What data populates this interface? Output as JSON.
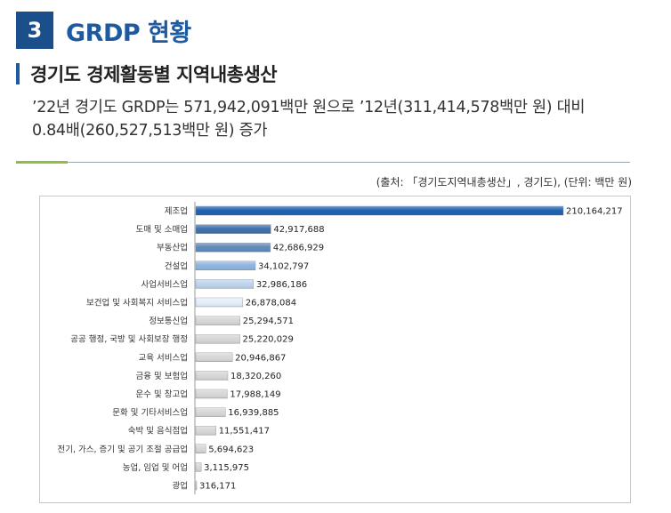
{
  "header": {
    "number": "3",
    "title": "GRDP 현황"
  },
  "subheader": {
    "title": "경기도 경제활동별 지역내총생산"
  },
  "description": {
    "line1": "’22년 경기도 GRDP는 571,942,091백만 원으로 ’12년(311,414,578백만 원) 대비",
    "line2": "0.84배(260,527,513백만 원) 증가"
  },
  "source_note": "(출처: 「경기도지역내총생산」, 경기도), (단위: 백만 원)",
  "colors": {
    "badge": "#1b4f8c",
    "title": "#1e5aa0",
    "accent_line": "#8bbf3f"
  },
  "chart_data": {
    "type": "bar",
    "orientation": "horizontal",
    "categories": [
      "제조업",
      "도매 및 소매업",
      "부동산업",
      "건설업",
      "사업서비스업",
      "보건업 및 사회복지 서비스업",
      "정보통신업",
      "공공 행정, 국방 및 사회보장 행정",
      "교육 서비스업",
      "금융 및 보험업",
      "운수 및 창고업",
      "문화 및 기타서비스업",
      "숙박 및 음식점업",
      "전기, 가스, 증기 및 공기 조절 공급업",
      "농업, 임업 및 어업",
      "광업"
    ],
    "values": [
      210164217,
      42917688,
      42686929,
      34102797,
      32986186,
      26878084,
      25294571,
      25220029,
      20946867,
      18320260,
      17988149,
      16939885,
      11551417,
      5694623,
      3115975,
      316171
    ],
    "value_labels": [
      "210,164,217",
      "42,917,688",
      "42,686,929",
      "34,102,797",
      "32,986,186",
      "26,878,084",
      "25,294,571",
      "25,220,029",
      "20,946,867",
      "18,320,260",
      "17,988,149",
      "16,939,885",
      "11,551,417",
      "5,694,623",
      "3,115,975",
      "316,171"
    ],
    "bar_colors": [
      "#1c5fae",
      "#3e6fad",
      "#5f88b8",
      "#8fb3dc",
      "#bcd3ee",
      "#e3eefa",
      "#d6d6d6",
      "#d6d6d6",
      "#d6d6d6",
      "#d6d6d6",
      "#d6d6d6",
      "#d6d6d6",
      "#d6d6d6",
      "#d6d6d6",
      "#d6d6d6",
      "#d6d6d6"
    ],
    "title": "",
    "xlabel": "",
    "ylabel": "",
    "xlim": [
      0,
      210164217
    ],
    "grid": false,
    "legend": "none"
  }
}
